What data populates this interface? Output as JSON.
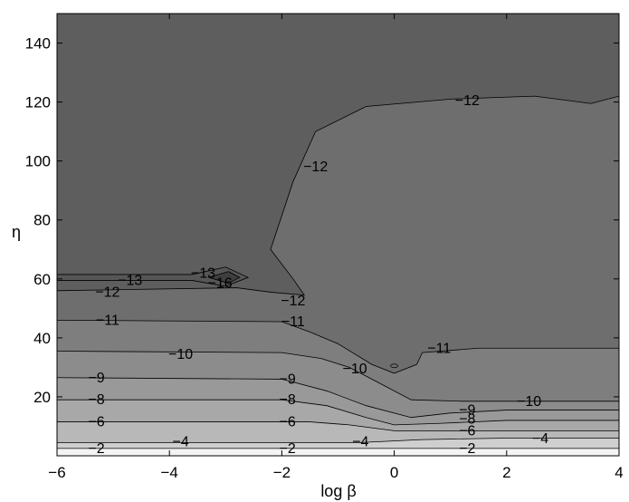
{
  "chart_data": {
    "type": "contour",
    "title": "",
    "xlabel": "log β",
    "ylabel": "η",
    "xlim": [
      -6,
      4
    ],
    "ylim": [
      0,
      150
    ],
    "x_ticks": [
      -6,
      -4,
      -2,
      0,
      2,
      4
    ],
    "x_tick_labels": [
      "−6",
      "−4",
      "−2",
      "0",
      "2",
      "4"
    ],
    "y_ticks": [
      20,
      40,
      60,
      80,
      100,
      120,
      140
    ],
    "y_tick_labels": [
      "20",
      "40",
      "60",
      "80",
      "100",
      "120",
      "140"
    ],
    "grid": false,
    "colormap": "grayscale (dark = low, light = high)",
    "levels": [
      -16,
      -13,
      -12,
      -11,
      -10,
      -9,
      -8,
      -6,
      -4,
      -2
    ],
    "contours": [
      {
        "level": -2,
        "points": [
          [
            -6,
            2.5
          ],
          [
            4,
            2.5
          ]
        ]
      },
      {
        "level": -4,
        "points": [
          [
            -6,
            4.5
          ],
          [
            -0.6,
            4.5
          ],
          [
            0.5,
            5.5
          ],
          [
            2,
            6
          ],
          [
            4,
            6
          ]
        ]
      },
      {
        "level": -6,
        "points": [
          [
            -6,
            11.5
          ],
          [
            -1.5,
            11.5
          ],
          [
            -0.8,
            10.5
          ],
          [
            0,
            8.5
          ],
          [
            0.5,
            8.5
          ],
          [
            2,
            8.5
          ],
          [
            4,
            8.5
          ]
        ]
      },
      {
        "level": -8,
        "points": [
          [
            -6,
            19
          ],
          [
            -2,
            19
          ],
          [
            -1.2,
            17
          ],
          [
            -0.5,
            13
          ],
          [
            0,
            10.5
          ],
          [
            0.8,
            11
          ],
          [
            2,
            12
          ],
          [
            4,
            12
          ]
        ]
      },
      {
        "level": -9,
        "points": [
          [
            -6,
            26.5
          ],
          [
            -2,
            26
          ],
          [
            -1.2,
            22
          ],
          [
            -0.5,
            17
          ],
          [
            0.3,
            13
          ],
          [
            1,
            14.5
          ],
          [
            2,
            15.5
          ],
          [
            4,
            15.5
          ]
        ]
      },
      {
        "level": -10,
        "points": [
          [
            -6,
            35.5
          ],
          [
            -2,
            35
          ],
          [
            -1.3,
            33
          ],
          [
            -0.8,
            30
          ],
          [
            -0.3,
            25
          ],
          [
            0.3,
            19
          ],
          [
            1.2,
            18.5
          ],
          [
            2.5,
            18.5
          ],
          [
            4,
            18.5
          ]
        ]
      },
      {
        "level": -11,
        "points": [
          [
            -6,
            46
          ],
          [
            -2,
            45.5
          ],
          [
            -1.5,
            42
          ],
          [
            -1.0,
            38
          ],
          [
            -0.4,
            31
          ],
          [
            0,
            28
          ],
          [
            0.4,
            31
          ],
          [
            0.5,
            35
          ],
          [
            1.5,
            36.5
          ],
          [
            4,
            36.5
          ]
        ]
      },
      {
        "level": -12,
        "points": [
          [
            -6,
            56
          ],
          [
            -2.8,
            57
          ],
          [
            -2.2,
            55.5
          ],
          [
            -1.6,
            54.5
          ],
          [
            -1.8,
            60
          ],
          [
            -2.2,
            70
          ],
          [
            -1.8,
            93
          ],
          [
            -1.4,
            110
          ],
          [
            -0.5,
            118.5
          ],
          [
            1.0,
            121
          ],
          [
            2.5,
            122
          ],
          [
            3.5,
            119.5
          ],
          [
            4,
            122
          ]
        ]
      },
      {
        "level": -13,
        "points": [
          [
            -6,
            61.5
          ],
          [
            -3.6,
            61.5
          ],
          [
            -3.0,
            64
          ],
          [
            -2.6,
            60.5
          ],
          [
            -3.0,
            57.5
          ],
          [
            -3.6,
            59.5
          ],
          [
            -6,
            59.5
          ]
        ],
        "closed": false
      },
      {
        "level": -16,
        "points": [
          [
            -3.3,
            60.5
          ],
          [
            -2.95,
            62.5
          ],
          [
            -2.75,
            60.5
          ],
          [
            -2.95,
            58.5
          ]
        ],
        "closed": true
      }
    ],
    "annotations": [
      {
        "text": "−2",
        "x": -5.3,
        "y": 2.5
      },
      {
        "text": "−2",
        "x": -1.9,
        "y": 2.5
      },
      {
        "text": "−2",
        "x": 1.3,
        "y": 2.5
      },
      {
        "text": "−4",
        "x": -3.8,
        "y": 4.8
      },
      {
        "text": "−4",
        "x": -0.6,
        "y": 4.8
      },
      {
        "text": "−4",
        "x": 2.6,
        "y": 5.8
      },
      {
        "text": "−6",
        "x": -5.3,
        "y": 11.5
      },
      {
        "text": "−6",
        "x": -1.9,
        "y": 11.5
      },
      {
        "text": "−6",
        "x": 1.3,
        "y": 8.5
      },
      {
        "text": "−8",
        "x": -5.3,
        "y": 19
      },
      {
        "text": "−8",
        "x": -1.9,
        "y": 19
      },
      {
        "text": "−8",
        "x": 1.3,
        "y": 12.5
      },
      {
        "text": "−9",
        "x": -5.3,
        "y": 26.5
      },
      {
        "text": "−9",
        "x": -1.9,
        "y": 26
      },
      {
        "text": "−9",
        "x": 1.3,
        "y": 15.5
      },
      {
        "text": "−10",
        "x": -3.8,
        "y": 34.5
      },
      {
        "text": "−10",
        "x": -0.7,
        "y": 29.5
      },
      {
        "text": "−10",
        "x": 2.4,
        "y": 18.5
      },
      {
        "text": "−11",
        "x": -5.1,
        "y": 46
      },
      {
        "text": "−11",
        "x": -1.8,
        "y": 45.5
      },
      {
        "text": "−11",
        "x": 0.8,
        "y": 36.5
      },
      {
        "text": "−12",
        "x": -5.1,
        "y": 55.5
      },
      {
        "text": "−12",
        "x": -1.8,
        "y": 52.5
      },
      {
        "text": "−12",
        "x": -1.4,
        "y": 98
      },
      {
        "text": "−12",
        "x": 1.3,
        "y": 120.5
      },
      {
        "text": "−13",
        "x": -4.7,
        "y": 59.5
      },
      {
        "text": "−13",
        "x": -3.4,
        "y": 62
      },
      {
        "text": "−16",
        "x": -3.1,
        "y": 58.5
      }
    ]
  }
}
